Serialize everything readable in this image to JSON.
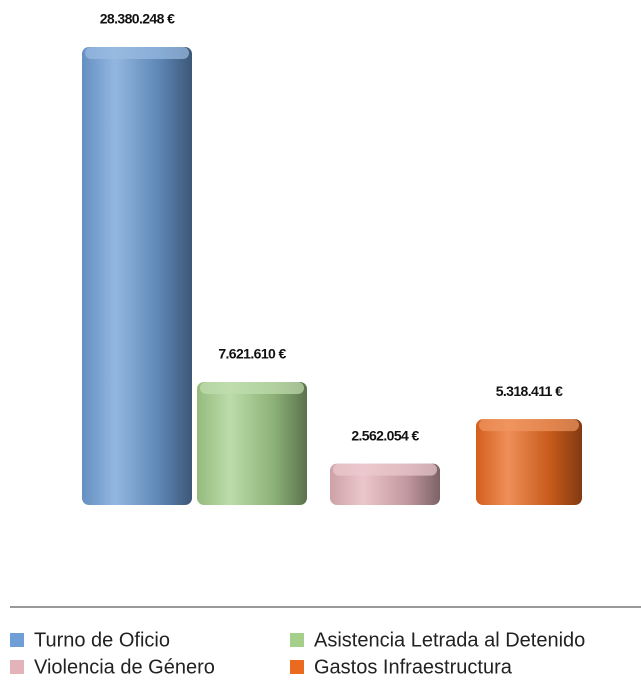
{
  "chart_data": {
    "type": "bar",
    "categories": [
      "Turno de Oficio",
      "Asistencia Letrada al Detenido",
      "Violencia de Género",
      "Gastos Infraestructura"
    ],
    "values": [
      28380248,
      7621610,
      2562054,
      5318411
    ],
    "value_labels": [
      "28.380.248 €",
      "7.621.610 €",
      "2.562.054 €",
      "5.318.411 €"
    ],
    "colors": [
      "#6f9fd6",
      "#a5d08c",
      "#e4b3ba",
      "#ea6a20"
    ]
  }
}
